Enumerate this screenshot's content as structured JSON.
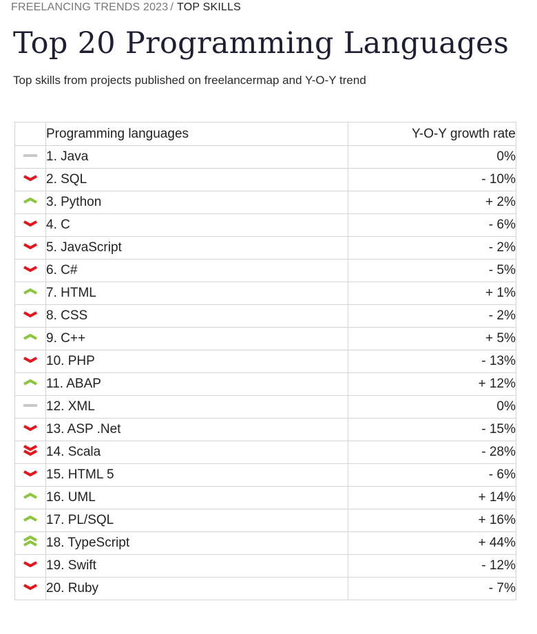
{
  "breadcrumb": {
    "parent": "FREELANCING TRENDS 2023",
    "separator": "/",
    "current": "TOP SKILLS"
  },
  "title": "Top 20 Programming Languages",
  "subtitle": "Top skills from projects published on freelancermap  and Y-O-Y trend",
  "table": {
    "headers": {
      "trend": "",
      "language": "Programming languages",
      "growth": "Y-O-Y growth rate"
    },
    "rows": [
      {
        "rank_name": "1. Java",
        "growth": "0%",
        "trend": "flat"
      },
      {
        "rank_name": "2. SQL",
        "growth": "- 10%",
        "trend": "down"
      },
      {
        "rank_name": "3. Python",
        "growth": "+ 2%",
        "trend": "up"
      },
      {
        "rank_name": "4. C",
        "growth": "- 6%",
        "trend": "down"
      },
      {
        "rank_name": "5. JavaScript",
        "growth": "- 2%",
        "trend": "down"
      },
      {
        "rank_name": "6. C#",
        "growth": "- 5%",
        "trend": "down"
      },
      {
        "rank_name": "7. HTML",
        "growth": "+ 1%",
        "trend": "up"
      },
      {
        "rank_name": "8. CSS",
        "growth": "- 2%",
        "trend": "down"
      },
      {
        "rank_name": "9. C++",
        "growth": "+ 5%",
        "trend": "up"
      },
      {
        "rank_name": "10. PHP",
        "growth": "- 13%",
        "trend": "down"
      },
      {
        "rank_name": "11. ABAP",
        "growth": "+ 12%",
        "trend": "up"
      },
      {
        "rank_name": "12. XML",
        "growth": "0%",
        "trend": "flat"
      },
      {
        "rank_name": "13. ASP .Net",
        "growth": "- 15%",
        "trend": "down"
      },
      {
        "rank_name": "14. Scala",
        "growth": "- 28%",
        "trend": "double-down"
      },
      {
        "rank_name": "15. HTML 5",
        "growth": "- 6%",
        "trend": "down"
      },
      {
        "rank_name": "16. UML",
        "growth": "+ 14%",
        "trend": "up"
      },
      {
        "rank_name": "17. PL/SQL",
        "growth": "+ 16%",
        "trend": "up"
      },
      {
        "rank_name": "18. TypeScript",
        "growth": "+ 44%",
        "trend": "double-up"
      },
      {
        "rank_name": "19. Swift",
        "growth": "- 12%",
        "trend": "down"
      },
      {
        "rank_name": "20. Ruby",
        "growth": "- 7%",
        "trend": "down"
      }
    ]
  },
  "trend_icons": {
    "flat": "dash-icon",
    "down": "chevron-down-icon",
    "up": "chevron-up-icon",
    "double-down": "double-chevron-down-icon",
    "double-up": "double-chevron-up-icon"
  },
  "colors": {
    "down": "#e8131b",
    "up": "#8cc63f",
    "flat": "#c8c8c8",
    "title": "#1f1f33"
  }
}
